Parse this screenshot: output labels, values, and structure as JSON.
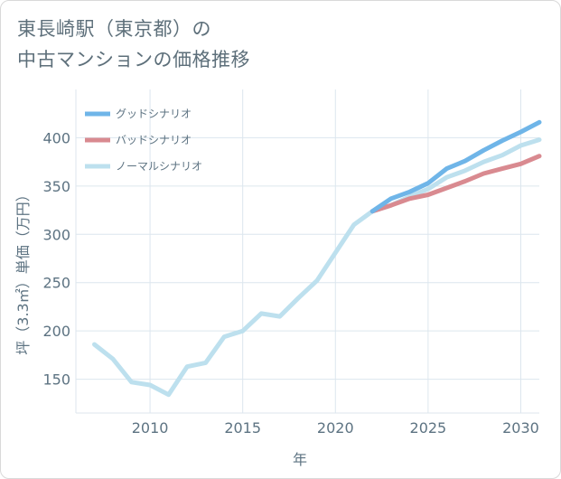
{
  "title": {
    "line1": "東長崎駅（東京都）の",
    "line2": "中古マンションの価格推移"
  },
  "chart_data": {
    "type": "line",
    "xlabel": "年",
    "ylabel": "坪（3.3㎡）単価（万円）",
    "xlim": [
      2006,
      2031
    ],
    "ylim": [
      115,
      450
    ],
    "xticks": [
      2010,
      2015,
      2020,
      2025,
      2030
    ],
    "yticks": [
      150,
      200,
      250,
      300,
      350,
      400
    ],
    "legend_position": "top-left",
    "series": [
      {
        "name": "グッドシナリオ",
        "color": "#6fb5e8",
        "x": [
          2022,
          2023,
          2024,
          2025,
          2026,
          2027,
          2028,
          2029,
          2030,
          2031
        ],
        "y": [
          324,
          337,
          344,
          353,
          368,
          376,
          387,
          397,
          406,
          416
        ]
      },
      {
        "name": "バッドシナリオ",
        "color": "#d98a90",
        "x": [
          2022,
          2023,
          2024,
          2025,
          2026,
          2027,
          2028,
          2029,
          2030,
          2031
        ],
        "y": [
          324,
          330,
          337,
          341,
          348,
          355,
          363,
          368,
          373,
          381
        ]
      },
      {
        "name": "ノーマルシナリオ",
        "color": "#bde0ee",
        "x": [
          2007,
          2008,
          2009,
          2010,
          2011,
          2012,
          2013,
          2014,
          2015,
          2016,
          2017,
          2018,
          2019,
          2020,
          2021,
          2022,
          2023,
          2024,
          2025,
          2026,
          2027,
          2028,
          2029,
          2030,
          2031
        ],
        "y": [
          186,
          171,
          147,
          144,
          134,
          163,
          167,
          194,
          200,
          218,
          215,
          234,
          252,
          281,
          310,
          324,
          330,
          339,
          347,
          359,
          366,
          375,
          382,
          392,
          398
        ]
      }
    ]
  }
}
